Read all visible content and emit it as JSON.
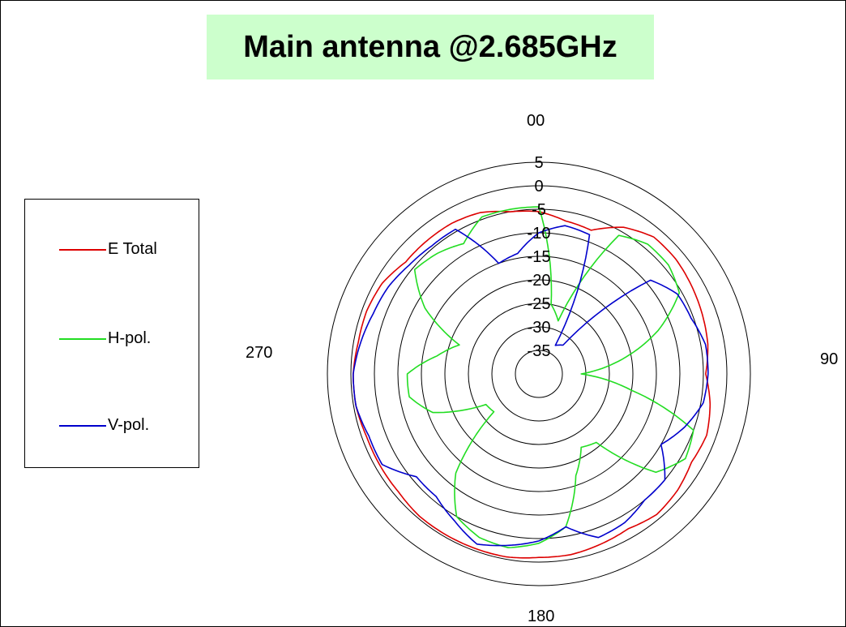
{
  "chart_data": {
    "type": "polar",
    "title": "Main antenna @2.685GHz",
    "angle_labels": [
      {
        "angle": 0,
        "text": "00"
      },
      {
        "angle": 90,
        "text": "90"
      },
      {
        "angle": 180,
        "text": "180"
      },
      {
        "angle": 270,
        "text": "270"
      }
    ],
    "r_ticks": [
      "5",
      "0",
      "-5",
      "-10",
      "-15",
      "-20",
      "-25",
      "-30",
      "-35"
    ],
    "r_range": [
      -40,
      5
    ],
    "r_step": 5,
    "legend_position": "left",
    "angles": [
      0,
      10,
      20,
      30,
      40,
      50,
      60,
      70,
      80,
      90,
      100,
      110,
      120,
      130,
      140,
      150,
      160,
      170,
      180,
      190,
      200,
      210,
      220,
      230,
      240,
      250,
      260,
      270,
      280,
      290,
      300,
      310,
      320,
      330,
      340,
      350
    ],
    "series": [
      {
        "name": "E Total",
        "color": "#dd0000",
        "values": [
          -5.5,
          -7,
          -7.5,
          -4,
          -2,
          -2,
          -2.5,
          -3,
          -3.5,
          -4.5,
          -3,
          -2,
          -2.5,
          -1.5,
          -1,
          -2,
          -1.5,
          -1,
          -1,
          -0.5,
          -0.5,
          -0.5,
          -0.5,
          -1,
          -1,
          -1,
          -0.5,
          -0.5,
          -1,
          -1,
          -1.5,
          -3,
          -3,
          -3,
          -3.5,
          -5
        ]
      },
      {
        "name": "H-pol.",
        "color": "#22dd22",
        "values": [
          -4.5,
          -25,
          -28,
          -6,
          -4,
          -4,
          -5.5,
          -13,
          -22,
          -31,
          -20,
          -5,
          -4,
          -7.5,
          -21,
          -22,
          -17,
          -7,
          -4,
          -2.5,
          -3,
          -5,
          -12.5,
          -27.5,
          -27,
          -16,
          -12,
          -12,
          -18,
          -22,
          -12,
          -5.5,
          -6.5,
          -8,
          -4.5,
          -4.5
        ]
      },
      {
        "name": "V-pol.",
        "color": "#0000cc",
        "values": [
          -10,
          -8,
          -8.5,
          -33,
          -32,
          -9,
          -6,
          -5.5,
          -4,
          -4,
          -4.5,
          -7,
          -10,
          -5,
          -5,
          -3.5,
          -3,
          -7,
          -4.5,
          -3,
          -1.5,
          -4,
          -6,
          -6,
          -1.5,
          -1.5,
          -0.5,
          -0.5,
          -1.5,
          -2.5,
          -3,
          -4,
          -4.5,
          -4.5,
          -15,
          -14
        ]
      }
    ]
  }
}
